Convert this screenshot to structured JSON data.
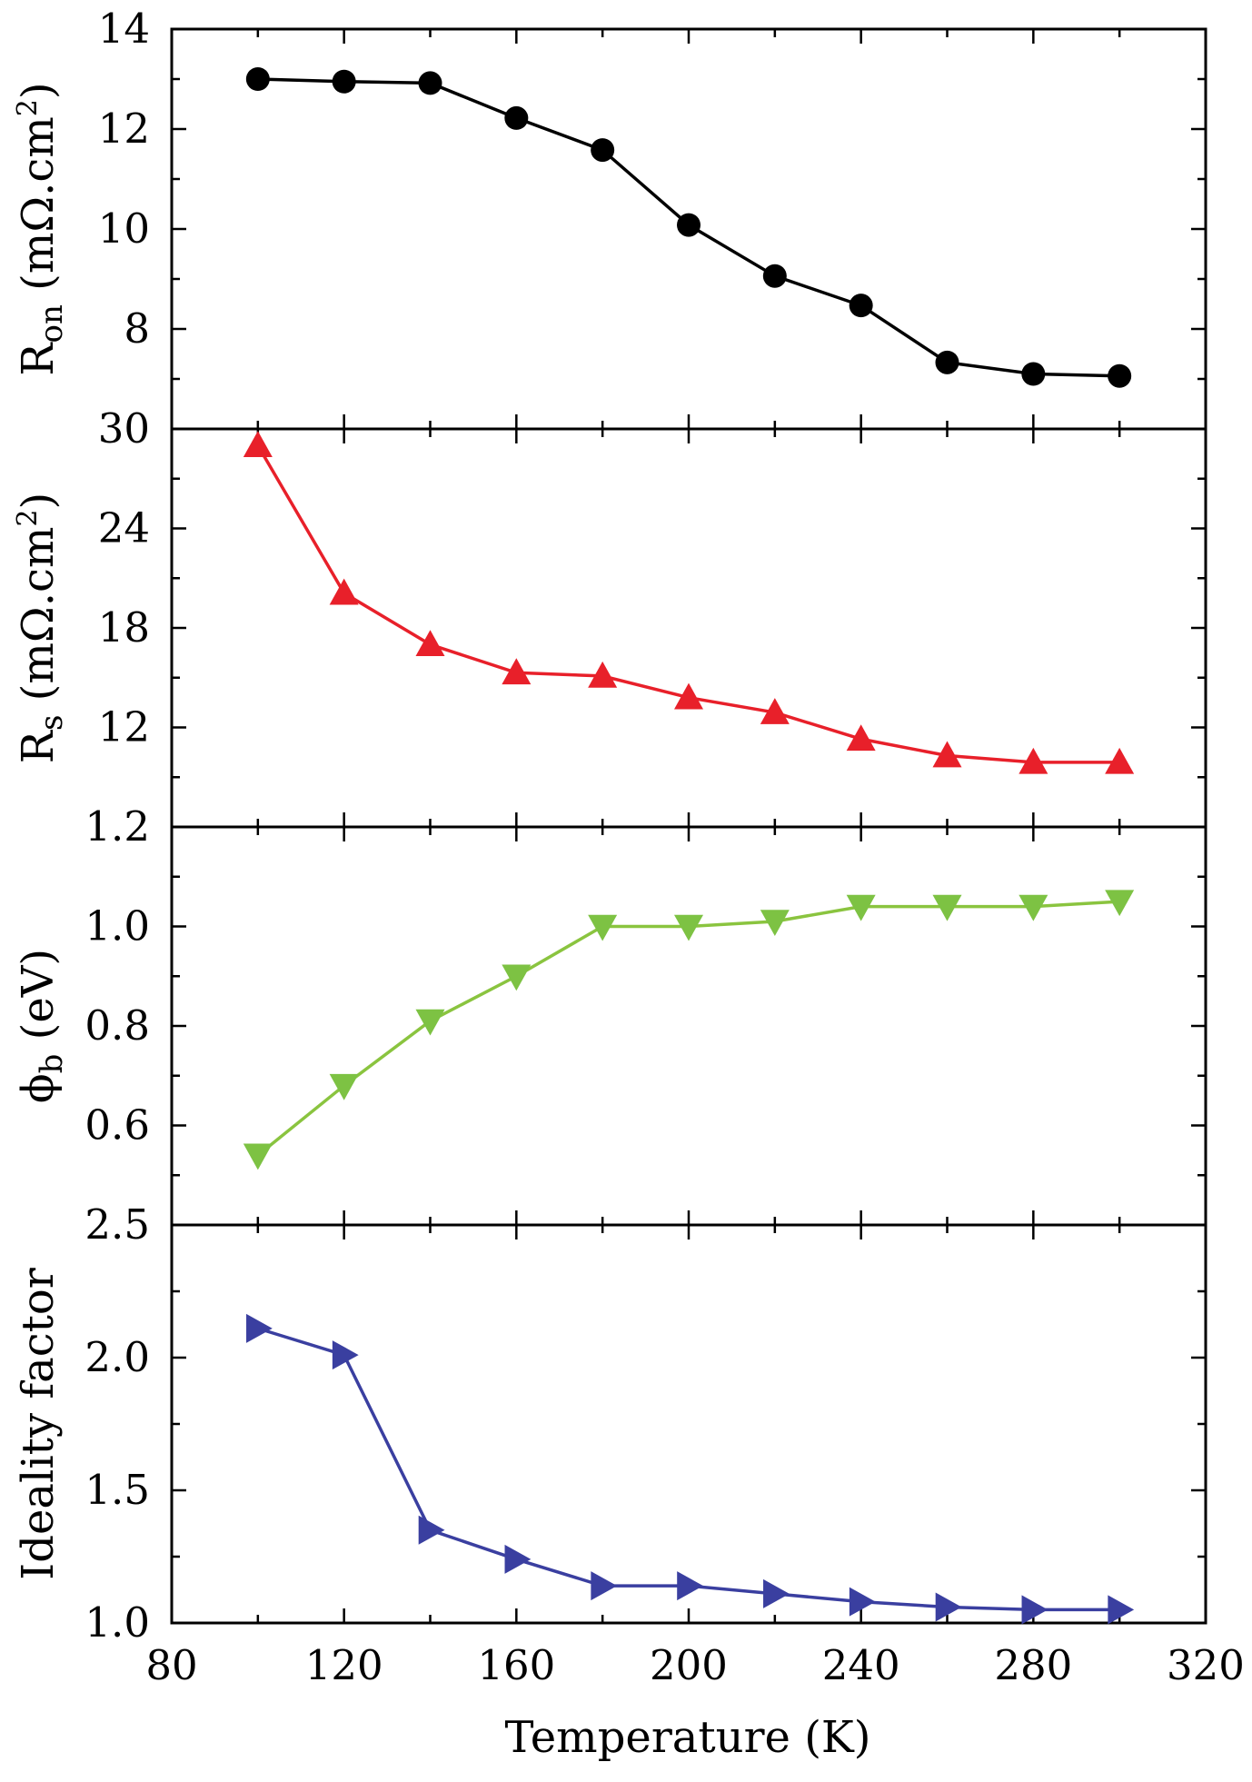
{
  "chart_data": {
    "type": "line",
    "x_shared": {
      "label": "Temperature (K)",
      "xlim": [
        80,
        320
      ],
      "ticks": [
        80,
        120,
        160,
        200,
        240,
        280,
        320
      ],
      "tick_labels": [
        "80",
        "120",
        "160",
        "200",
        "240",
        "280",
        "320"
      ]
    },
    "panels": [
      {
        "key": "ron",
        "ylabel": {
          "main": "R",
          "sub": "on",
          "pre_sup": " (mΩ.cm",
          "sup": "2",
          "post": ")"
        },
        "ylim": [
          6,
          14
        ],
        "ticks": [
          8,
          10,
          12,
          14
        ],
        "tick_labels": [
          "8",
          "10",
          "12",
          "14"
        ],
        "marker": "circle",
        "color": "#000000",
        "line_color": "#000000",
        "x": [
          100,
          120,
          140,
          160,
          180,
          200,
          220,
          240,
          260,
          280,
          300
        ],
        "y": [
          13.0,
          12.95,
          12.92,
          12.22,
          11.58,
          10.08,
          9.06,
          8.47,
          7.33,
          7.1,
          7.06
        ]
      },
      {
        "key": "rs",
        "ylabel": {
          "main": "R",
          "sub": "s",
          "pre_sup": " (mΩ.cm",
          "sup": "2",
          "post": ")"
        },
        "ylim": [
          6,
          30
        ],
        "ticks": [
          12,
          18,
          24,
          30
        ],
        "tick_labels": [
          "12",
          "18",
          "24",
          "30"
        ],
        "marker": "triangle-up",
        "color": "#e8202a",
        "line_color": "#e8202a",
        "x": [
          100,
          120,
          140,
          160,
          180,
          200,
          220,
          240,
          260,
          280,
          300
        ],
        "y": [
          29.0,
          20.1,
          17.0,
          15.3,
          15.1,
          13.8,
          12.9,
          11.3,
          10.3,
          9.9,
          9.9
        ]
      },
      {
        "key": "phib",
        "ylabel": {
          "main": "ϕ",
          "sub": "b",
          "pre_sup": " (eV)",
          "sup": "",
          "post": ""
        },
        "ylim": [
          0.4,
          1.2
        ],
        "ticks": [
          0.6,
          0.8,
          1.0,
          1.2
        ],
        "tick_labels": [
          "0.6",
          "0.8",
          "1.0",
          "1.2"
        ],
        "marker": "triangle-down",
        "color": "#7dc243",
        "line_color": "#8ac43f",
        "x": [
          100,
          120,
          140,
          160,
          180,
          200,
          220,
          240,
          260,
          280,
          300
        ],
        "y": [
          0.54,
          0.68,
          0.81,
          0.9,
          1.0,
          1.0,
          1.01,
          1.04,
          1.04,
          1.04,
          1.05
        ]
      },
      {
        "key": "ideality",
        "ylabel": {
          "main": "Ideality factor",
          "sub": "",
          "pre_sup": "",
          "sup": "",
          "post": ""
        },
        "ylim": [
          1.0,
          2.5
        ],
        "ticks": [
          1.0,
          1.5,
          2.0,
          2.5
        ],
        "tick_labels": [
          "1.0",
          "1.5",
          "2.0",
          "2.5"
        ],
        "marker": "triangle-right",
        "color": "#3a3fa0",
        "line_color": "#3a3fa0",
        "x": [
          100,
          120,
          140,
          160,
          180,
          200,
          220,
          240,
          260,
          280,
          300
        ],
        "y": [
          2.11,
          2.01,
          1.35,
          1.24,
          1.14,
          1.14,
          1.11,
          1.08,
          1.06,
          1.05,
          1.05
        ]
      }
    ]
  }
}
